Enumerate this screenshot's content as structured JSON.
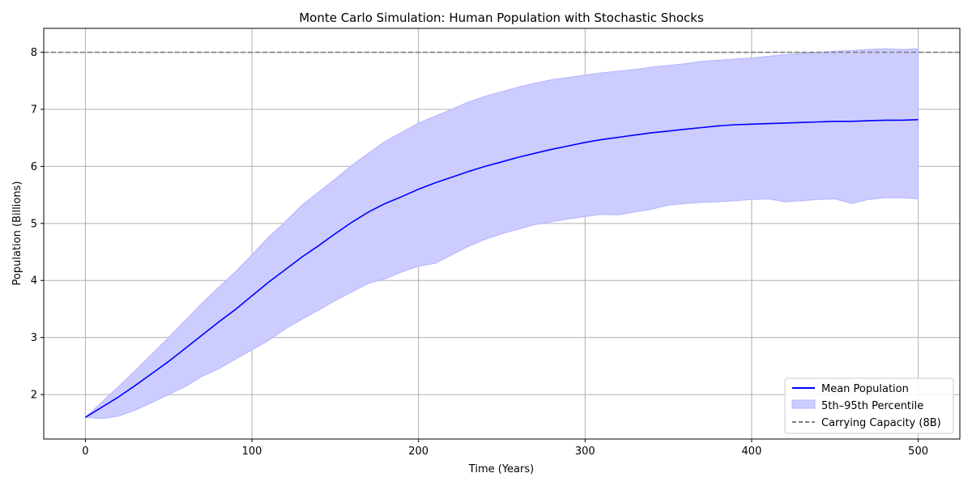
{
  "chart_data": {
    "type": "line",
    "title": "Monte Carlo Simulation: Human Population with Stochastic Shocks",
    "xlabel": "Time (Years)",
    "ylabel": "Population (Billions)",
    "xlim": [
      -25,
      525
    ],
    "ylim": [
      1.22,
      8.42
    ],
    "xticks": [
      0,
      100,
      200,
      300,
      400,
      500
    ],
    "yticks": [
      2,
      3,
      4,
      5,
      6,
      7,
      8
    ],
    "grid": true,
    "legend_position": "lower-right",
    "colors": {
      "mean": "#0000ff",
      "band_fill": "#ccccff",
      "band_edge": "#b3b3ff",
      "capacity": "#808080",
      "grid": "#b0b0b0"
    },
    "series": [
      {
        "name": "Mean Population",
        "x": [
          0,
          10,
          20,
          30,
          40,
          50,
          60,
          70,
          80,
          90,
          100,
          110,
          120,
          130,
          140,
          150,
          160,
          170,
          180,
          190,
          200,
          210,
          220,
          230,
          240,
          250,
          260,
          270,
          280,
          290,
          300,
          310,
          320,
          330,
          340,
          350,
          360,
          370,
          380,
          390,
          400,
          410,
          420,
          430,
          440,
          450,
          460,
          470,
          480,
          490,
          500
        ],
        "y": [
          1.6,
          1.78,
          1.96,
          2.16,
          2.37,
          2.58,
          2.81,
          3.04,
          3.27,
          3.49,
          3.73,
          3.97,
          4.19,
          4.41,
          4.61,
          4.82,
          5.02,
          5.2,
          5.35,
          5.47,
          5.6,
          5.71,
          5.81,
          5.91,
          6.0,
          6.08,
          6.16,
          6.23,
          6.3,
          6.36,
          6.42,
          6.47,
          6.51,
          6.55,
          6.59,
          6.62,
          6.65,
          6.68,
          6.71,
          6.73,
          6.74,
          6.75,
          6.76,
          6.77,
          6.78,
          6.79,
          6.79,
          6.8,
          6.81,
          6.81,
          6.82
        ]
      },
      {
        "name": "5th–95th Percentile",
        "x": [
          0,
          10,
          20,
          30,
          40,
          50,
          60,
          70,
          80,
          90,
          100,
          110,
          120,
          130,
          140,
          150,
          160,
          170,
          180,
          190,
          200,
          210,
          220,
          230,
          240,
          250,
          260,
          270,
          280,
          290,
          300,
          310,
          320,
          330,
          340,
          350,
          360,
          370,
          380,
          390,
          400,
          410,
          420,
          430,
          440,
          450,
          460,
          470,
          480,
          490,
          500
        ],
        "upper": [
          1.6,
          1.87,
          2.14,
          2.42,
          2.71,
          3.0,
          3.3,
          3.6,
          3.88,
          4.15,
          4.45,
          4.76,
          5.03,
          5.32,
          5.55,
          5.78,
          6.02,
          6.23,
          6.44,
          6.6,
          6.76,
          6.88,
          7.0,
          7.13,
          7.23,
          7.31,
          7.39,
          7.46,
          7.52,
          7.56,
          7.6,
          7.64,
          7.67,
          7.7,
          7.74,
          7.77,
          7.8,
          7.84,
          7.86,
          7.88,
          7.9,
          7.93,
          7.96,
          7.98,
          8.0,
          8.02,
          8.03,
          8.05,
          8.06,
          8.05,
          8.06
        ],
        "lower": [
          1.6,
          1.58,
          1.62,
          1.73,
          1.86,
          2.0,
          2.14,
          2.32,
          2.45,
          2.62,
          2.78,
          2.95,
          3.15,
          3.32,
          3.48,
          3.65,
          3.8,
          3.95,
          4.03,
          4.15,
          4.25,
          4.3,
          4.45,
          4.6,
          4.72,
          4.82,
          4.9,
          4.98,
          5.03,
          5.08,
          5.12,
          5.16,
          5.15,
          5.2,
          5.25,
          5.32,
          5.35,
          5.37,
          5.38,
          5.4,
          5.42,
          5.43,
          5.38,
          5.4,
          5.42,
          5.43,
          5.35,
          5.42,
          5.45,
          5.45,
          5.43
        ]
      },
      {
        "name": "Carrying Capacity (8B)",
        "y": 8
      }
    ]
  }
}
